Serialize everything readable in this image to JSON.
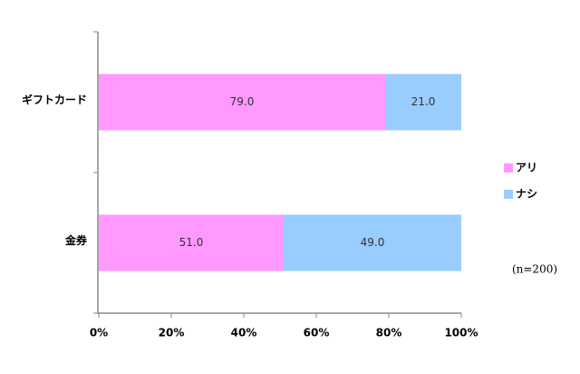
{
  "chart_data": {
    "type": "stacked-bar-horizontal",
    "categories": [
      "ギフトカード",
      "金券"
    ],
    "series": [
      {
        "name": "アリ",
        "color": "#ff99ff",
        "values": [
          79.0,
          51.0
        ],
        "value_labels": [
          "79.0",
          "51.0"
        ]
      },
      {
        "name": "ナシ",
        "color": "#99ccff",
        "values": [
          21.0,
          49.0
        ],
        "value_labels": [
          "21.0",
          "49.0"
        ]
      }
    ],
    "xlim": [
      0,
      100
    ],
    "xticks": [
      {
        "value": 0,
        "label": "0%"
      },
      {
        "value": 20,
        "label": "20%"
      },
      {
        "value": 40,
        "label": "40%"
      },
      {
        "value": 60,
        "label": "60%"
      },
      {
        "value": 80,
        "label": "80%"
      },
      {
        "value": 100,
        "label": "100%"
      }
    ],
    "legend": "right",
    "annotation": "(n=200)"
  }
}
